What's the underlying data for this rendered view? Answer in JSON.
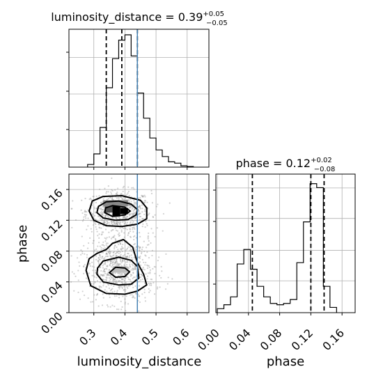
{
  "chart_data": [
    {
      "id": "lum_hist",
      "type": "histogram",
      "title": {
        "base": "luminosity_distance = 0.39",
        "sup": "+0.05",
        "sub": "−0.05"
      },
      "xlim": [
        0.22,
        0.67
      ],
      "bins_start": 0.28,
      "bins_width": 0.02,
      "counts": [
        0.02,
        0.1,
        0.3,
        0.6,
        0.82,
        0.96,
        1.0,
        0.84,
        0.56,
        0.37,
        0.22,
        0.13,
        0.08,
        0.04,
        0.03,
        0.01,
        0.005
      ],
      "quantiles": [
        0.34,
        0.39,
        0.44
      ],
      "truth": 0.44
    },
    {
      "id": "phase_hist",
      "type": "histogram",
      "title": {
        "base": "phase = 0.12",
        "sup": "+0.02",
        "sub": "−0.08"
      },
      "xlim": [
        0.0,
        0.175
      ],
      "xticks": [
        0.0,
        0.04,
        0.08,
        0.12,
        0.16
      ],
      "xtick_labels": [
        "0.00",
        "0.04",
        "0.08",
        "0.12",
        "0.16"
      ],
      "xlabel": "phase",
      "bins_start": 0.0,
      "bins_width": 0.0085,
      "counts": [
        0.03,
        0.06,
        0.12,
        0.37,
        0.48,
        0.33,
        0.2,
        0.12,
        0.07,
        0.06,
        0.07,
        0.1,
        0.38,
        0.69,
        0.98,
        0.95,
        0.2,
        0.04
      ],
      "quantiles": [
        0.045,
        0.12,
        0.137
      ]
    },
    {
      "id": "joint",
      "type": "scatter",
      "xlim": [
        0.22,
        0.67
      ],
      "ylim": [
        0.0,
        0.18
      ],
      "xticks": [
        0.3,
        0.4,
        0.5,
        0.6
      ],
      "xtick_labels": [
        "0.3",
        "0.4",
        "0.5",
        "0.6"
      ],
      "yticks": [
        0.0,
        0.04,
        0.08,
        0.12,
        0.16
      ],
      "ytick_labels": [
        "0.00",
        "0.04",
        "0.08",
        "0.12",
        "0.16"
      ],
      "xlabel": "luminosity_distance",
      "ylabel": "phase",
      "truth_x": 0.44,
      "clusters": [
        {
          "cx": 0.38,
          "cy": 0.132,
          "sx": 0.052,
          "sy": 0.013,
          "n": 700
        },
        {
          "cx": 0.38,
          "cy": 0.052,
          "sx": 0.058,
          "sy": 0.02,
          "n": 650
        },
        {
          "cx": 0.38,
          "cy": 0.09,
          "sx": 0.05,
          "sy": 0.016,
          "n": 140
        }
      ],
      "density_cells": [
        {
          "x": [
            0.335,
            0.36
          ],
          "y": [
            0.13,
            0.138
          ],
          "shade": "#555555"
        },
        {
          "x": [
            0.36,
            0.385
          ],
          "y": [
            0.125,
            0.14
          ],
          "shade": "#000000"
        },
        {
          "x": [
            0.385,
            0.41
          ],
          "y": [
            0.128,
            0.136
          ],
          "shade": "#000000"
        },
        {
          "x": [
            0.33,
            0.41
          ],
          "y": [
            0.138,
            0.146
          ],
          "shade": "#8a8a8a"
        },
        {
          "x": [
            0.36,
            0.41
          ],
          "y": [
            0.052,
            0.06
          ],
          "shade": "#bdbdbd"
        }
      ],
      "contours": [
        [
          [
            0.335,
            0.13
          ],
          [
            0.36,
            0.125
          ],
          [
            0.4,
            0.127
          ],
          [
            0.417,
            0.132
          ],
          [
            0.4,
            0.137
          ],
          [
            0.36,
            0.139
          ],
          [
            0.338,
            0.136
          ]
        ],
        [
          [
            0.31,
            0.13
          ],
          [
            0.33,
            0.123
          ],
          [
            0.37,
            0.12
          ],
          [
            0.41,
            0.121
          ],
          [
            0.436,
            0.127
          ],
          [
            0.44,
            0.134
          ],
          [
            0.42,
            0.141
          ],
          [
            0.38,
            0.145
          ],
          [
            0.34,
            0.144
          ],
          [
            0.315,
            0.138
          ]
        ],
        [
          [
            0.285,
            0.132
          ],
          [
            0.3,
            0.12
          ],
          [
            0.34,
            0.113
          ],
          [
            0.39,
            0.112
          ],
          [
            0.44,
            0.115
          ],
          [
            0.47,
            0.122
          ],
          [
            0.47,
            0.136
          ],
          [
            0.45,
            0.146
          ],
          [
            0.39,
            0.152
          ],
          [
            0.33,
            0.151
          ],
          [
            0.295,
            0.145
          ]
        ],
        [
          [
            0.35,
            0.052
          ],
          [
            0.37,
            0.046
          ],
          [
            0.4,
            0.047
          ],
          [
            0.415,
            0.053
          ],
          [
            0.4,
            0.058
          ],
          [
            0.37,
            0.059
          ]
        ],
        [
          [
            0.31,
            0.05
          ],
          [
            0.33,
            0.04
          ],
          [
            0.38,
            0.036
          ],
          [
            0.42,
            0.037
          ],
          [
            0.445,
            0.045
          ],
          [
            0.44,
            0.06
          ],
          [
            0.42,
            0.068
          ],
          [
            0.38,
            0.072
          ],
          [
            0.33,
            0.067
          ],
          [
            0.312,
            0.058
          ]
        ],
        [
          [
            0.275,
            0.055
          ],
          [
            0.29,
            0.035
          ],
          [
            0.34,
            0.025
          ],
          [
            0.4,
            0.024
          ],
          [
            0.44,
            0.028
          ],
          [
            0.47,
            0.036
          ],
          [
            0.46,
            0.05
          ],
          [
            0.44,
            0.065
          ],
          [
            0.425,
            0.085
          ],
          [
            0.395,
            0.095
          ],
          [
            0.36,
            0.09
          ],
          [
            0.34,
            0.082
          ],
          [
            0.31,
            0.077
          ],
          [
            0.285,
            0.07
          ]
        ]
      ]
    }
  ]
}
